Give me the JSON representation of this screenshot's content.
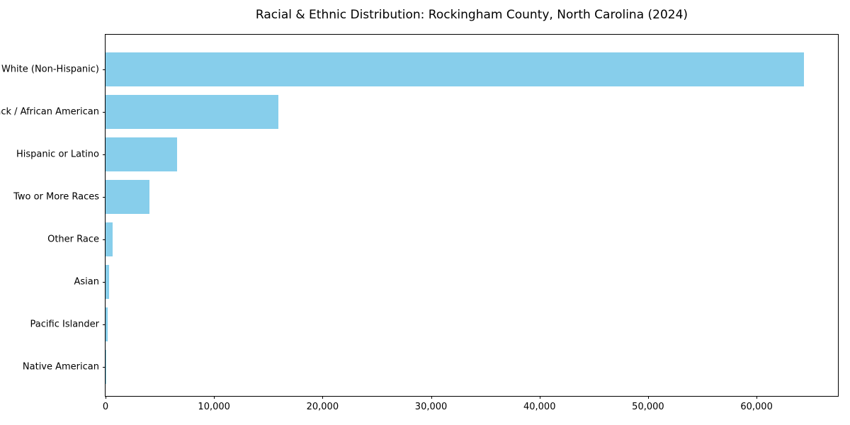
{
  "chart_data": {
    "type": "bar",
    "orientation": "horizontal",
    "title": "Racial & Ethnic Distribution: Rockingham County, North Carolina (2024)",
    "categories": [
      "White (Non-Hispanic)",
      "Black / African American",
      "Hispanic or Latino",
      "Two or More Races",
      "Other Race",
      "Asian",
      "Pacific Islander",
      "Native American"
    ],
    "values": [
      64350,
      15950,
      6580,
      4040,
      650,
      350,
      170,
      60
    ],
    "xlabel": "",
    "ylabel": "",
    "xlim": [
      0,
      67500
    ],
    "xticks": {
      "values": [
        0,
        10000,
        20000,
        30000,
        40000,
        50000,
        60000
      ],
      "labels": [
        "0",
        "10,000",
        "20,000",
        "30,000",
        "40,000",
        "50,000",
        "60,000"
      ]
    },
    "bar_color": "#87CEEB",
    "background_color": "#ffffff",
    "spine_color": "#000000",
    "grid": false,
    "legend": null
  }
}
